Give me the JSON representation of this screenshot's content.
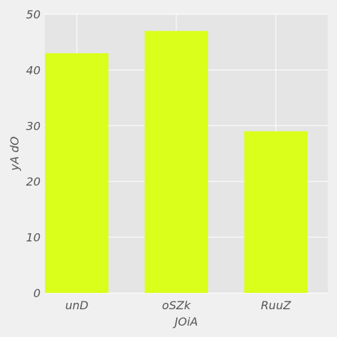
{
  "chart_data": {
    "type": "bar",
    "categories": [
      "unD",
      "oSZk",
      "RuuZ"
    ],
    "values": [
      43,
      47,
      29
    ],
    "xlabel": "JOiA",
    "ylabel": "yA dO",
    "ylim": [
      0,
      50
    ],
    "yticks": [
      0,
      10,
      20,
      30,
      40,
      50
    ],
    "grid": true,
    "legend": "none"
  },
  "colors": {
    "bar": "#d9ff1a",
    "plot_background": "#e5e5e5",
    "figure_background": "#f0f0f0",
    "grid": "#ffffff",
    "text": "#555555"
  }
}
